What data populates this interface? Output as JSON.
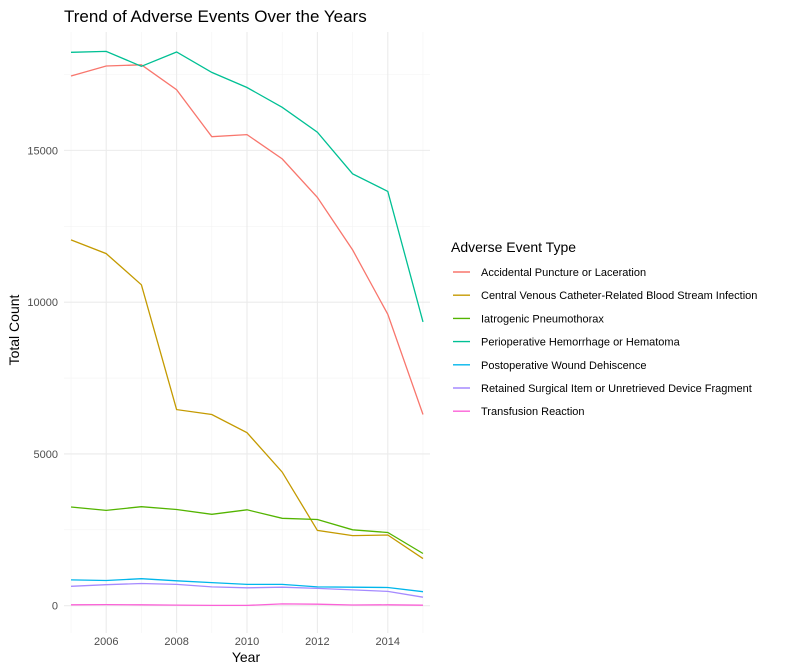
{
  "chart_data": {
    "type": "line",
    "title": "Trend of Adverse Events Over the Years",
    "xlabel": "Year",
    "ylabel": "Total Count",
    "x": [
      2005,
      2006,
      2007,
      2008,
      2009,
      2010,
      2011,
      2012,
      2013,
      2014,
      2015
    ],
    "xlim": [
      2004.8,
      2015.2
    ],
    "ylim": [
      -900,
      18900
    ],
    "x_ticks": [
      "2006",
      "2008",
      "2010",
      "2012",
      "2014"
    ],
    "y_ticks": [
      "0",
      "5000",
      "10000",
      "15000"
    ],
    "grid": true,
    "legend_title": "Adverse Event Type",
    "legend_position": "right",
    "series": [
      {
        "name": "Accidental Puncture or Laceration",
        "color": "#F8766D",
        "values": [
          17450,
          17780,
          17820,
          17000,
          15450,
          15520,
          14720,
          13450,
          11720,
          9600,
          6300
        ]
      },
      {
        "name": "Central Venous Catheter-Related Blood Stream Infection",
        "color": "#C49A00",
        "values": [
          12050,
          11600,
          10570,
          6460,
          6300,
          5700,
          4400,
          2480,
          2310,
          2330,
          1550
        ]
      },
      {
        "name": "Iatrogenic Pneumothorax",
        "color": "#53B400",
        "values": [
          3250,
          3140,
          3260,
          3170,
          3010,
          3160,
          2880,
          2840,
          2500,
          2410,
          1720
        ]
      },
      {
        "name": "Perioperative Hemorrhage or Hematoma",
        "color": "#00C094",
        "values": [
          18230,
          18260,
          17770,
          18240,
          17570,
          17070,
          16420,
          15600,
          14230,
          13650,
          9350
        ]
      },
      {
        "name": "Postoperative Wound Dehiscence",
        "color": "#00B6EB",
        "values": [
          850,
          830,
          890,
          820,
          760,
          700,
          700,
          620,
          610,
          600,
          460
        ]
      },
      {
        "name": "Retained Surgical Item or Unretrieved Device Fragment",
        "color": "#A58AFF",
        "values": [
          640,
          690,
          730,
          700,
          620,
          590,
          610,
          570,
          520,
          470,
          280
        ]
      },
      {
        "name": "Transfusion Reaction",
        "color": "#FB61D7",
        "values": [
          30,
          35,
          28,
          18,
          10,
          10,
          60,
          50,
          22,
          28,
          15
        ]
      }
    ]
  }
}
